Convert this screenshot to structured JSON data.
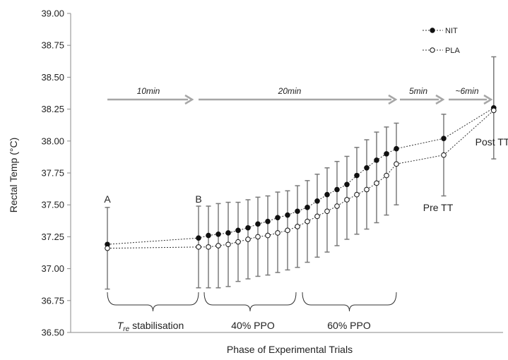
{
  "chart_data": {
    "type": "line",
    "title": "",
    "xlabel": "Phase of Experimental Trials",
    "ylabel": "Rectal Temp (°C)",
    "ylim": [
      36.5,
      39.0
    ],
    "yticks": [
      "36.50",
      "36.75",
      "37.00",
      "37.25",
      "37.50",
      "37.75",
      "38.00",
      "38.25",
      "38.50",
      "38.75",
      "39.00"
    ],
    "x": [
      0,
      10,
      11,
      12,
      13,
      14,
      15,
      16,
      17,
      18,
      19,
      20,
      21,
      22,
      23,
      24,
      25,
      26,
      27,
      28,
      29,
      30,
      35,
      41
    ],
    "series": [
      {
        "name": "NIT",
        "marker": "filled",
        "values": [
          37.19,
          37.24,
          37.26,
          37.27,
          37.28,
          37.3,
          37.32,
          37.35,
          37.37,
          37.4,
          37.42,
          37.45,
          37.48,
          37.53,
          37.58,
          37.62,
          37.66,
          37.73,
          37.79,
          37.85,
          37.9,
          37.94,
          38.02,
          38.26
        ],
        "errors": [
          0.21,
          0.24,
          0.21,
          0.2,
          0.2,
          0.19,
          0.19,
          0.19,
          0.2,
          0.2,
          0.19,
          0.19,
          0.21,
          0.21,
          0.21,
          0.22,
          0.22,
          0.22,
          0.22,
          0.22,
          0.21,
          0.2,
          0.19,
          0.4
        ]
      },
      {
        "name": "PLA",
        "marker": "open",
        "values": [
          37.16,
          37.17,
          37.17,
          37.18,
          37.19,
          37.21,
          37.23,
          37.25,
          37.26,
          37.28,
          37.3,
          37.33,
          37.37,
          37.41,
          37.45,
          37.49,
          37.54,
          37.58,
          37.62,
          37.67,
          37.73,
          37.82,
          37.89,
          38.24
        ],
        "errors": [
          0.32,
          0.32,
          0.32,
          0.33,
          0.33,
          0.31,
          0.31,
          0.31,
          0.31,
          0.31,
          0.31,
          0.32,
          0.32,
          0.32,
          0.32,
          0.31,
          0.31,
          0.31,
          0.31,
          0.31,
          0.31,
          0.32,
          0.32,
          0.32
        ]
      }
    ],
    "legend_position": "top-right",
    "grid": false
  },
  "annotations": {
    "point_a": "A",
    "point_b": "B",
    "pre_tt": "Pre TT",
    "post_tt": "Post TT",
    "durations": [
      "10min",
      "20min",
      "5min",
      "~6min"
    ],
    "phases": {
      "stab_t": "T",
      "stab_sub": "re",
      "stab_rest": " stabilisation",
      "ppo40": "40% PPO",
      "ppo60": "60% PPO"
    }
  },
  "colors": {
    "series_line": "#333333",
    "error_bar": "#7a7a7a",
    "arrow": "#a6a6a6",
    "axis": "#8a8a8a"
  }
}
